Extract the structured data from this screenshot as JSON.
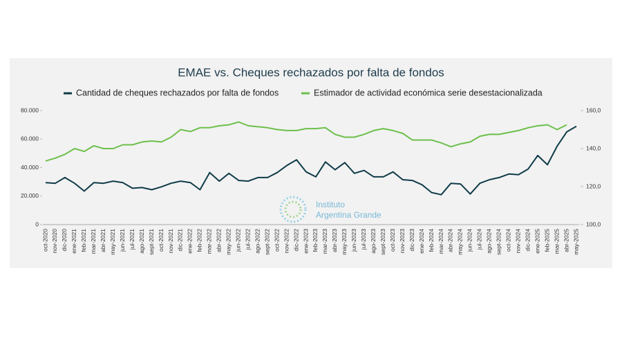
{
  "chart_data": {
    "type": "line",
    "title": "EMAE vs. Cheques rechazados por falta de fondos",
    "watermark": [
      "Instituto",
      "Argentina Grande"
    ],
    "categories": [
      "oct-2020",
      "nov-2020",
      "dic-2020",
      "ene-2021",
      "feb-2021",
      "mar-2021",
      "abr-2021",
      "may-2021",
      "jun-2021",
      "jul-2021",
      "ago-2021",
      "sept-2021",
      "oct-2021",
      "nov-2021",
      "dic-2021",
      "ene-2022",
      "feb-2022",
      "mar-2022",
      "abr-2022",
      "may-2022",
      "jun-2022",
      "jul-2022",
      "ago-2022",
      "sept-2022",
      "oct-2022",
      "nov-2022",
      "dic-2022",
      "ene-2023",
      "feb-2023",
      "mar-2023",
      "abr-2023",
      "may-2023",
      "jun-2023",
      "jul-2023",
      "ago-2023",
      "sept-2023",
      "oct-2023",
      "nov-2023",
      "dic-2023",
      "ene-2024",
      "feb-2024",
      "mar-2024",
      "abr-2024",
      "may-2024",
      "jun-2024",
      "jul-2024",
      "ago-2024",
      "sept-2024",
      "oct-2024",
      "nov-2024",
      "dic-2024",
      "ene-2025",
      "feb-2025",
      "mar-2025",
      "abr-2025",
      "may-2025"
    ],
    "series": [
      {
        "name": "Cantidad de cheques rechazados por falta de fondos",
        "color": "#0f3b48",
        "values": [
          29500,
          29000,
          33000,
          29000,
          23500,
          29500,
          29000,
          30500,
          29500,
          25500,
          26000,
          24500,
          26500,
          29000,
          30500,
          29500,
          24500,
          36500,
          30500,
          36000,
          31000,
          30500,
          33000,
          33000,
          36500,
          41500,
          45500,
          37000,
          33500,
          44000,
          38500,
          43500,
          36000,
          38000,
          33500,
          33500,
          37000,
          31500,
          31000,
          28000,
          22500,
          21000,
          29000,
          28500,
          21500,
          29000,
          31500,
          33000,
          35500,
          35000,
          39000,
          48500,
          42000,
          55000,
          65000,
          69000
        ]
      },
      {
        "name": "Estimador de actividad económica serie desestacionalizada",
        "color": "#6cbf4a",
        "axis": "y2",
        "values": [
          133.5,
          135,
          137,
          140,
          138.5,
          141.5,
          140,
          140,
          142,
          142,
          143.5,
          144,
          143.5,
          146,
          150,
          149,
          151,
          151,
          152,
          152.5,
          154,
          152,
          151.5,
          151,
          150,
          149.5,
          149.5,
          150.5,
          150.5,
          151,
          147.5,
          146,
          146,
          147.5,
          149.5,
          150.5,
          149.5,
          148,
          144.5,
          144.5,
          144.5,
          143,
          141,
          142.5,
          143.5,
          146.5,
          147.5,
          147.5,
          148.5,
          149.5,
          151,
          152,
          152.5,
          150,
          152.5,
          null
        ]
      }
    ],
    "ylim": [
      0,
      80000
    ],
    "yticks": [
      0,
      {
        "value": 20000,
        "label": "20.000"
      },
      {
        "value": 40000,
        "label": "40.000"
      },
      {
        "value": 60000,
        "label": "60.000"
      },
      {
        "value": 80000,
        "label": "80.000"
      }
    ],
    "y2lim": [
      100,
      160
    ],
    "y2ticks": [
      {
        "value": 100,
        "label": "100,0"
      },
      {
        "value": 120,
        "label": "120,0"
      },
      {
        "value": 140,
        "label": "140,0"
      },
      {
        "value": 160,
        "label": "160,0"
      }
    ],
    "legend": "top"
  }
}
